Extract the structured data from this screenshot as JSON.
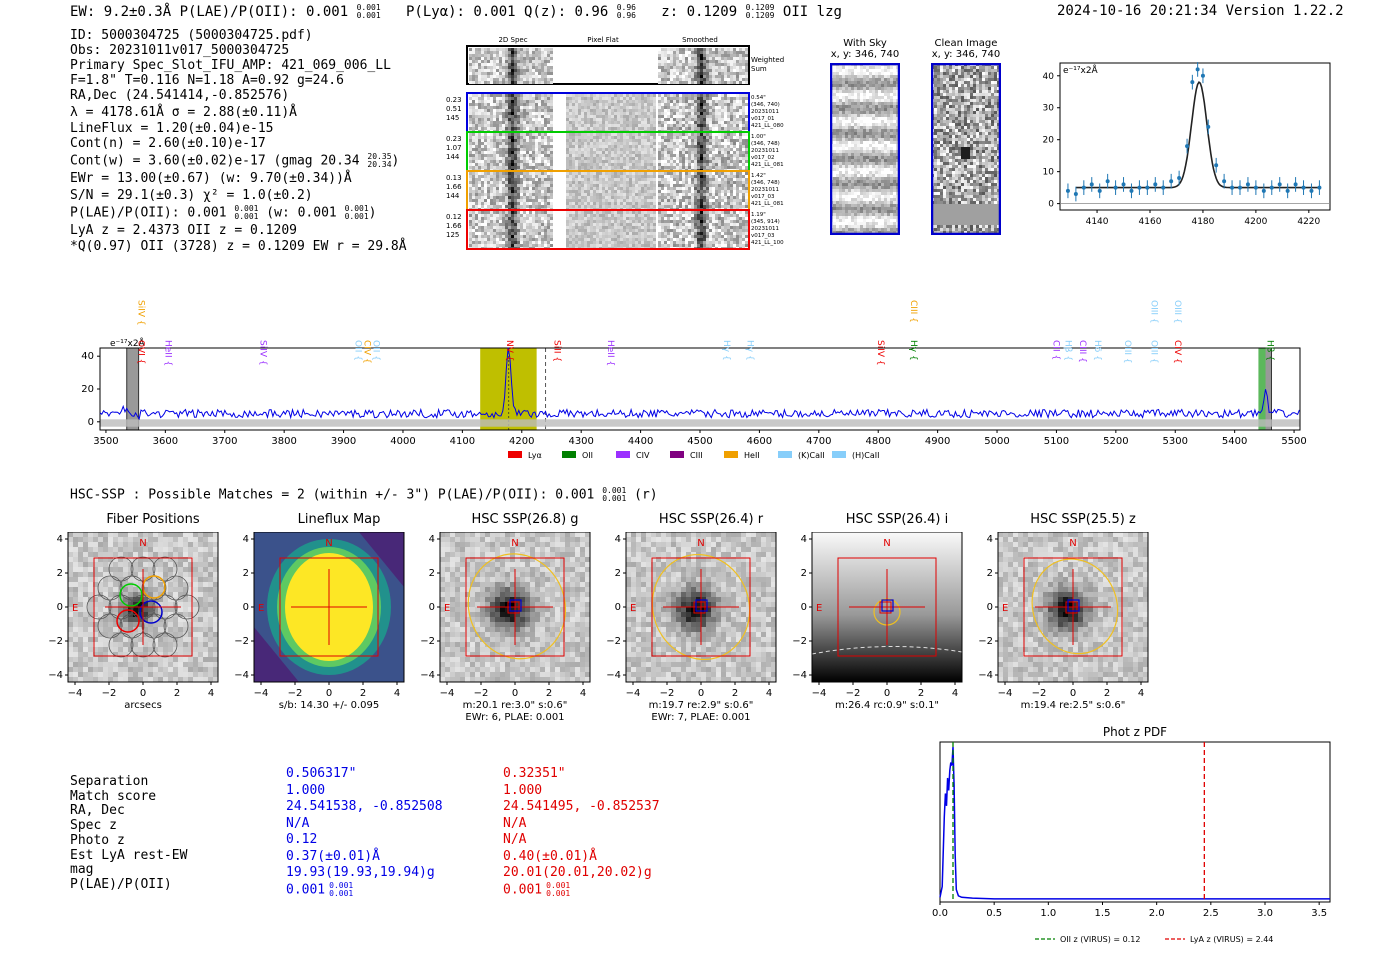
{
  "header": {
    "left": "EW: 9.2±0.3Å  P(LAE)/P(OII): 0.001",
    "left_sup": "0.001",
    "left_sub": "0.001",
    "plya": "P(Lyα): 0.001  Q(z): 0.96",
    "q_sup": "0.96",
    "q_sub": "0.96",
    "zlabel": "z: 0.1209",
    "z_sup": "0.1209",
    "z_sub": "0.1209",
    "tail": "OII   lzg",
    "right": "2024-10-16 20:21:34  Version 1.22.2"
  },
  "info": [
    "ID: 5000304725 (5000304725.pdf)",
    "Obs: 20231011v017_5000304725",
    "Primary Spec_Slot_IFU_AMP: 421_069_006_LL",
    "F=1.8\"  T=0.116  N=1.18  A=0.92  g=24.6",
    "RA,Dec (24.541414,-0.852576)",
    "λ = 4178.61Å  σ = 2.88(±0.11)Å",
    "LineFlux = 1.20(±0.04)e-15",
    "Cont(n) = 2.60(±0.10)e-17",
    "Cont(w) = 3.60(±0.02)e-17 (gmag 20.34",
    "EWr = 13.00(±0.67) (w: 9.70(±0.34))Å",
    "S/N = 29.1(±0.3)  χ² = 1.0(±0.2)",
    "P(LAE)/P(OII): 0.001",
    "LyA z = 2.4373  OII z = 0.1209",
    "*Q(0.97) OII (3728) z = 0.1209  EW r = 29.8Å"
  ],
  "info_gmag_sup": "20.35",
  "info_gmag_sub": "20.34",
  "info_gmag_close": ")",
  "info_plae_sup": "0.001",
  "info_plae_sub": "0.001",
  "info_plae_w": "(w: 0.001",
  "info_plae_w_sup": "0.001",
  "info_plae_w_sub": "0.001",
  "info_plae_close": ")",
  "cutouts": {
    "col_headers": [
      "2D Spec",
      "Pixel Flat",
      "Smoothed"
    ],
    "weighted_label": "Weighted Sum",
    "rows": [
      {
        "vals": [
          "0.23",
          "0.51",
          "145"
        ],
        "info": [
          "0.54\"",
          "(346, 740)",
          "20231011",
          "v017_01",
          "421_LL_080"
        ],
        "color": "#0000dd"
      },
      {
        "vals": [
          "0.23",
          "1.07",
          "144"
        ],
        "info": [
          "1.00\"",
          "(346, 748)",
          "20231011",
          "v017_02",
          "421_LL_081"
        ],
        "color": "#00cc00"
      },
      {
        "vals": [
          "0.13",
          "1.66",
          "144"
        ],
        "info": [
          "1.42\"",
          "(346, 748)",
          "20231011",
          "v017_03",
          "421_LL_081"
        ],
        "color": "#f0a000"
      },
      {
        "vals": [
          "0.12",
          "1.66",
          "125"
        ],
        "info": [
          "1.19\"",
          "(345, 914)",
          "20231011",
          "v017_03",
          "421_LL_100"
        ],
        "color": "#ee0000"
      }
    ]
  },
  "sky": {
    "title": "With Sky",
    "coords": "x, y: 346, 740"
  },
  "clean": {
    "title": "Clean Image",
    "coords": "x, y: 346, 740"
  },
  "colors": {
    "blue": "#0000e6",
    "red": "#e00000",
    "olive": "#bfbf00",
    "gold": "#f0c020"
  },
  "chart_data": [
    {
      "type": "scatter",
      "name": "line-fit",
      "ylabel": "e⁻¹⁷x2Å",
      "x": [
        4129,
        4132,
        4135,
        4138,
        4141,
        4144,
        4147,
        4150,
        4153,
        4156,
        4159,
        4162,
        4165,
        4168,
        4171,
        4174,
        4176,
        4178,
        4180,
        4182,
        4185,
        4188,
        4191,
        4194,
        4197,
        4200,
        4203,
        4206,
        4209,
        4212,
        4215,
        4218,
        4221,
        4224
      ],
      "y": [
        4,
        3,
        5,
        6,
        4,
        7,
        5,
        6,
        4,
        5,
        5,
        6,
        5,
        7,
        8,
        18,
        38,
        42,
        40,
        24,
        12,
        7,
        5,
        5,
        6,
        5,
        4,
        5,
        6,
        4,
        6,
        5,
        4,
        5
      ],
      "xticks": [
        4140,
        4160,
        4180,
        4200,
        4220
      ],
      "yticks": [
        0,
        10,
        20,
        30,
        40
      ],
      "xlim": [
        4126,
        4228
      ],
      "ylim": [
        -2,
        44
      ]
    },
    {
      "type": "line",
      "name": "full-spectrum",
      "ylabel": "e⁻¹⁷x2Å",
      "xticks": [
        3500,
        3600,
        3700,
        3800,
        3900,
        4000,
        4100,
        4200,
        4300,
        4400,
        4500,
        4600,
        4700,
        4800,
        4900,
        5000,
        5100,
        5200,
        5300,
        5400,
        5500
      ],
      "yticks": [
        0,
        20,
        40
      ],
      "xlim": [
        3490,
        5510
      ],
      "ylim": [
        -5,
        45
      ],
      "peak_x": 4178,
      "peak_y": 41,
      "highlight_range": [
        4130,
        4225
      ],
      "marker_x": 4240,
      "legend": [
        "Lyα",
        "OII",
        "CIV",
        "CIII",
        "HeII",
        "(K)CaII",
        "(H)CaII"
      ],
      "legend_colors": [
        "#ee0000",
        "#008000",
        "#9b30ff",
        "#800080",
        "#f0a000",
        "#87cefa",
        "#87cefa"
      ],
      "lines": [
        {
          "label": "SiIV",
          "x": 3555,
          "color": "#f0a000",
          "row": 0
        },
        {
          "label": "OVI",
          "x": 3555,
          "color": "#ee0000",
          "row": 1
        },
        {
          "label": "HeII",
          "x": 3600,
          "color": "#9b30ff",
          "row": 1
        },
        {
          "label": "SiIV",
          "x": 3760,
          "color": "#9b30ff",
          "row": 1
        },
        {
          "label": "OII",
          "x": 3920,
          "color": "#87cefa",
          "row": 1
        },
        {
          "label": "CIV",
          "x": 3935,
          "color": "#f0a000",
          "row": 1
        },
        {
          "label": "OII",
          "x": 3950,
          "color": "#87cefa",
          "row": 1
        },
        {
          "label": "NV",
          "x": 4175,
          "color": "#ee0000",
          "row": 1
        },
        {
          "label": "SiII",
          "x": 4255,
          "color": "#ee0000",
          "row": 1
        },
        {
          "label": "HeII",
          "x": 4345,
          "color": "#9b30ff",
          "row": 1
        },
        {
          "label": "Hγ",
          "x": 4540,
          "color": "#87cefa",
          "row": 1
        },
        {
          "label": "Hγ",
          "x": 4580,
          "color": "#87cefa",
          "row": 1
        },
        {
          "label": "SiIV",
          "x": 4800,
          "color": "#ee0000",
          "row": 1
        },
        {
          "label": "CIII",
          "x": 4855,
          "color": "#f0a000",
          "row": 0
        },
        {
          "label": "Hγ",
          "x": 4855,
          "color": "#008000",
          "row": 1
        },
        {
          "label": "CII",
          "x": 5095,
          "color": "#9b30ff",
          "row": 1
        },
        {
          "label": "Hβ",
          "x": 5115,
          "color": "#87cefa",
          "row": 1
        },
        {
          "label": "CIII",
          "x": 5140,
          "color": "#9b30ff",
          "row": 1
        },
        {
          "label": "Hδ",
          "x": 5165,
          "color": "#87cefa",
          "row": 1
        },
        {
          "label": "OIII",
          "x": 5215,
          "color": "#87cefa",
          "row": 1
        },
        {
          "label": "OIII",
          "x": 5260,
          "color": "#87cefa",
          "row": 1
        },
        {
          "label": "OIII",
          "x": 5260,
          "color": "#87cefa",
          "row": 0
        },
        {
          "label": "OIII",
          "x": 5300,
          "color": "#87cefa",
          "row": 0
        },
        {
          "label": "CIV",
          "x": 5300,
          "color": "#ee0000",
          "row": 1
        },
        {
          "label": "Hβ",
          "x": 5455,
          "color": "#008000",
          "row": 1
        }
      ]
    },
    {
      "type": "line",
      "name": "photz-pdf",
      "title": "Phot z PDF",
      "x": [
        0.0,
        0.02,
        0.04,
        0.05,
        0.06,
        0.07,
        0.08,
        0.09,
        0.1,
        0.11,
        0.12,
        0.13,
        0.14,
        0.15,
        0.17,
        0.2,
        0.3,
        0.5,
        1.0,
        2.0,
        3.0,
        3.6
      ],
      "y": [
        0.03,
        0.1,
        0.55,
        0.7,
        0.62,
        0.8,
        0.72,
        0.85,
        0.9,
        0.88,
        1.0,
        0.75,
        0.3,
        0.08,
        0.04,
        0.03,
        0.025,
        0.02,
        0.02,
        0.02,
        0.02,
        0.02
      ],
      "xticks": [
        0.0,
        0.5,
        1.0,
        1.5,
        2.0,
        2.5,
        3.0,
        3.5
      ],
      "xlim": [
        0.0,
        3.6
      ],
      "oii_z": 0.12,
      "lya_z": 2.44,
      "legend": [
        "OII z (VIRUS) = 0.12",
        "LyA z (VIRUS) = 2.44"
      ]
    }
  ],
  "hsc_title": "HSC-SSP : Possible Matches = 2 (within +/- 3\")  P(LAE)/P(OII): 0.001",
  "hsc_sup": "0.001",
  "hsc_sub": "0.001",
  "hsc_tail": "(r)",
  "panels": [
    {
      "title": "Fiber Positions",
      "footer1": "arcsecs",
      "footer2": ""
    },
    {
      "title": "Lineflux Map",
      "footer1": "s/b: 14.30 +/- 0.095",
      "footer2": ""
    },
    {
      "title": "HSC SSP(26.8) g",
      "footer1": "m:20.1  re:3.0\"  s:0.6\"",
      "footer2": "EWr: 6, PLAE: 0.001"
    },
    {
      "title": "HSC SSP(26.4) r",
      "footer1": "m:19.7  re:2.9\"  s:0.6\"",
      "footer2": "EWr: 7, PLAE: 0.001"
    },
    {
      "title": "HSC SSP(26.4) i",
      "footer1": "m:26.4 rc:0.9\"  s:0.1\"",
      "footer2": ""
    },
    {
      "title": "HSC SSP(25.5) z",
      "footer1": "m:19.4  re:2.5\"  s:0.6\"",
      "footer2": ""
    }
  ],
  "axis_ticks": [
    "−4",
    "−2",
    "0",
    "2",
    "4"
  ],
  "compass": {
    "n": "N",
    "e": "E"
  },
  "table": {
    "labels": [
      "Separation",
      "Match score",
      "RA, Dec",
      "Spec z",
      "Photo z",
      "Est LyA rest-EW",
      "mag",
      "P(LAE)/P(OII)"
    ],
    "col1": [
      "0.506317\"",
      "1.000",
      "24.541538, -0.852508",
      "N/A",
      "0.12",
      "0.37(±0.01)Å",
      "19.93(19.93,19.94)g",
      "0.001"
    ],
    "col2": [
      "0.32351\"",
      "1.000",
      "24.541495, -0.852537",
      "N/A",
      "N/A",
      "0.40(±0.01)Å",
      "20.01(20.01,20.02)g",
      "0.001"
    ],
    "col1_sup": "0.001",
    "col1_sub": "0.001",
    "col2_sup": "0.001",
    "col2_sub": "0.001"
  }
}
